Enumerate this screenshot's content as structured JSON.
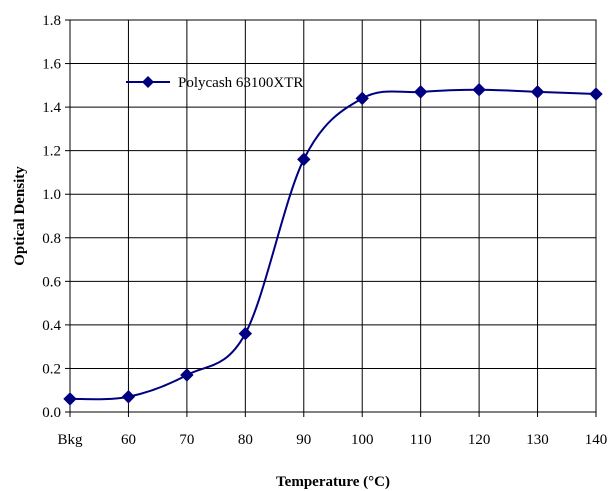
{
  "chart_data": {
    "type": "line",
    "title": "",
    "xlabel": "Temperature (°C)",
    "ylabel": "Optical Density",
    "categories": [
      "Bkg",
      "60",
      "70",
      "80",
      "90",
      "100",
      "110",
      "120",
      "130",
      "140"
    ],
    "series": [
      {
        "name": "Polycash 63100XTR",
        "values": [
          0.06,
          0.07,
          0.17,
          0.36,
          1.16,
          1.44,
          1.47,
          1.48,
          1.47,
          1.46
        ],
        "color": "#000080",
        "marker": "diamond",
        "smooth": true
      }
    ],
    "ylim": [
      0,
      1.8
    ],
    "yticks": [
      "0.0",
      "0.2",
      "0.4",
      "0.6",
      "0.8",
      "1.0",
      "1.2",
      "1.4",
      "1.6",
      "1.8"
    ],
    "grid": true,
    "legend_position": "top-left"
  }
}
